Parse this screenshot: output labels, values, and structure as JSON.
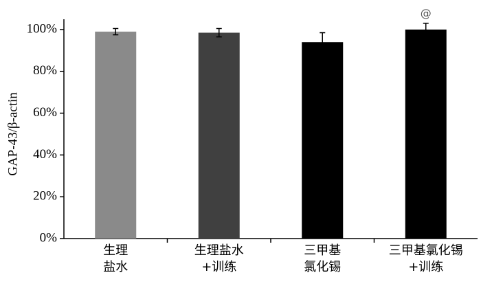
{
  "chart_data": {
    "type": "bar",
    "y_label": "GAP-43/β-actin",
    "categories": [
      "生理\n盐水",
      "生理盐水\n+训练",
      "三甲基\n氯化锡",
      "三甲基氯化锡\n+训练"
    ],
    "values": [
      99,
      98.5,
      94,
      100
    ],
    "errors": [
      1.5,
      2,
      4.5,
      3
    ],
    "colors": [
      "#8a8a8a",
      "#404040",
      "#000000",
      "#000000"
    ],
    "annotations": [
      {
        "text": "@",
        "category": "三甲基氯化锡\n+训练"
      }
    ],
    "ylim": [
      0,
      100
    ],
    "yticks": [
      {
        "value": 0,
        "label": "0%"
      },
      {
        "value": 20,
        "label": "20%"
      },
      {
        "value": 40,
        "label": "40%"
      },
      {
        "value": 60,
        "label": "60%"
      },
      {
        "value": 80,
        "label": "80%"
      },
      {
        "value": 100,
        "label": "100%"
      }
    ]
  }
}
